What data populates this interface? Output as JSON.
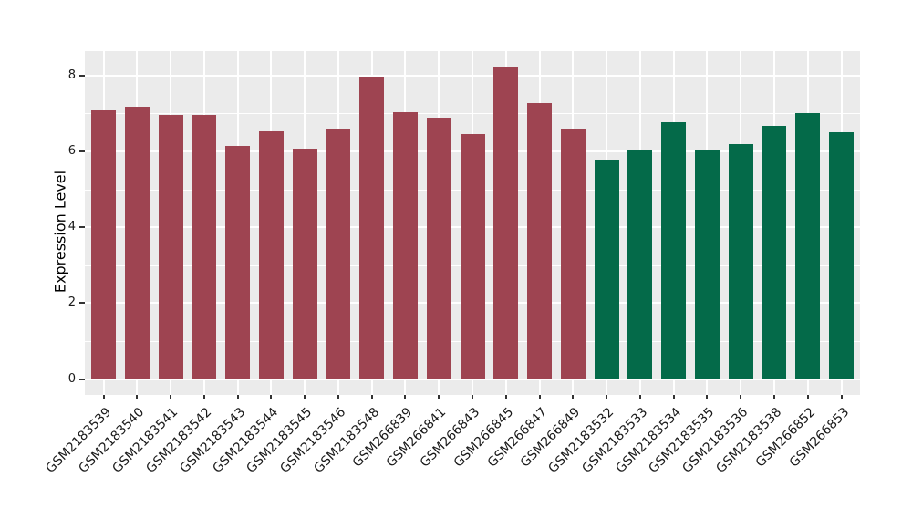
{
  "chart_data": {
    "type": "bar",
    "title": "",
    "xlabel": "",
    "ylabel": "Expression Level",
    "ylim": [
      -0.42,
      8.64
    ],
    "yticks": [
      0,
      2,
      4,
      6,
      8
    ],
    "grid": "white major+minor horizontal gridlines and vertical category gridlines on gray panel",
    "legend_position": "none",
    "panel_bg": "#EBEBEB",
    "grid_color": "#FFFFFF",
    "tick_color": "#333333",
    "text_color": "#1A1A1A",
    "group_colors": {
      "group1": "#9E4451",
      "group2": "#046A49"
    },
    "categories": [
      "GSM2183539",
      "GSM2183540",
      "GSM2183541",
      "GSM2183542",
      "GSM2183543",
      "GSM2183544",
      "GSM2183545",
      "GSM2183546",
      "GSM2183548",
      "GSM266839",
      "GSM266841",
      "GSM266843",
      "GSM266845",
      "GSM266847",
      "GSM266849",
      "GSM2183532",
      "GSM2183533",
      "GSM2183534",
      "GSM2183535",
      "GSM2183536",
      "GSM2183538",
      "GSM266852",
      "GSM266853"
    ],
    "values": [
      7.07,
      7.17,
      6.95,
      6.95,
      6.15,
      6.52,
      6.08,
      6.61,
      7.97,
      7.03,
      6.88,
      6.45,
      8.2,
      7.26,
      6.59,
      5.77,
      6.01,
      6.76,
      6.01,
      6.18,
      6.66,
      7.0,
      6.51
    ],
    "groups": [
      "group1",
      "group1",
      "group1",
      "group1",
      "group1",
      "group1",
      "group1",
      "group1",
      "group1",
      "group1",
      "group1",
      "group1",
      "group1",
      "group1",
      "group1",
      "group2",
      "group2",
      "group2",
      "group2",
      "group2",
      "group2",
      "group2",
      "group2"
    ]
  }
}
